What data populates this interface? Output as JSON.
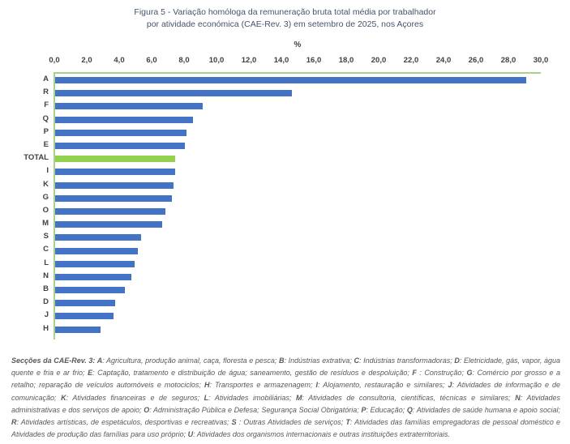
{
  "figure": {
    "title_line1": "Figura 5 - Variação homóloga da remuneração bruta total média por trabalhador",
    "title_line2": "por atividade económica (CAE-Rev. 3) em setembro de 2025, nos Açores"
  },
  "chart_data": {
    "type": "bar",
    "orientation": "horizontal",
    "title": "Figura 5 - Variação homóloga da remuneração bruta total média por trabalhador por atividade económica (CAE-Rev. 3) em setembro de 2025, nos Açores",
    "unit_label": "%",
    "categories": [
      "A",
      "R",
      "F",
      "Q",
      "P",
      "E",
      "TOTAL",
      "I",
      "K",
      "G",
      "O",
      "M",
      "S",
      "C",
      "L",
      "N",
      "B",
      "D",
      "J",
      "H"
    ],
    "values": [
      29.1,
      14.6,
      9.1,
      8.5,
      8.1,
      8.0,
      7.4,
      7.4,
      7.3,
      7.2,
      6.8,
      6.6,
      5.3,
      5.1,
      4.9,
      4.7,
      4.3,
      3.7,
      3.6,
      2.8
    ],
    "highlight_category": "TOTAL",
    "x_ticks": [
      "0,0",
      "2,0",
      "4,0",
      "6,0",
      "8,0",
      "10,0",
      "12,0",
      "14,0",
      "16,0",
      "18,0",
      "20,0",
      "22,0",
      "24,0",
      "26,0",
      "28,0",
      "30,0"
    ],
    "xlim": [
      0,
      30
    ],
    "grid": false,
    "legend": false,
    "colors": {
      "bar": "#4472C4",
      "highlight_bar": "#92D050",
      "axis_line": "#A9D18E",
      "tick_text": "#404040",
      "title_text": "#44546A",
      "footnote_text": "#595959"
    }
  },
  "footnote": {
    "intro": "Secções da CAE-Rev. 3:",
    "separator": "; ",
    "terminator": ".",
    "sections": [
      {
        "key": "A",
        "desc": "Agricultura, produção animal, caça, floresta e pesca"
      },
      {
        "key": "B",
        "desc": "Indústrias extrativa"
      },
      {
        "key": "C",
        "desc": "Indústrias transformadoras"
      },
      {
        "key": "D",
        "desc": "Eletricidade, gás, vapor, água quente e fria e ar frio"
      },
      {
        "key": "E",
        "desc": "Captação, tratamento e distribuição de água; saneamento, gestão de resíduos e despoluição"
      },
      {
        "key": "F ",
        "desc": "Construção"
      },
      {
        "key": "G",
        "desc": "Comércio por grosso e a retalho; reparação de veículos automóveis e motociclos"
      },
      {
        "key": "H",
        "desc": "Transportes e armazenagem"
      },
      {
        "key": "I",
        "desc": "Alojamento, restauração e similares"
      },
      {
        "key": "J",
        "desc": "Atividades de informação e de comunicação"
      },
      {
        "key": "K",
        "desc": "Atividades financeiras e de seguros"
      },
      {
        "key": "L",
        "desc": "Atividades imobiliárias"
      },
      {
        "key": "M",
        "desc": "Atividades de consultoria, científicas, técnicas e similares"
      },
      {
        "key": "N",
        "desc": "Atividades administrativas e dos serviços de apoio"
      },
      {
        "key": "O",
        "desc": "Administração Pública e Defesa; Segurança Social Obrigatória"
      },
      {
        "key": "P",
        "desc": "Educação"
      },
      {
        "key": "Q",
        "desc": "Atividades de saúde humana e apoio social"
      },
      {
        "key": "R",
        "desc": "Atividades artísticas, de espetáculos, desportivas e recreativas"
      },
      {
        "key": "S ",
        "desc": "Outras Atividades de serviços"
      },
      {
        "key": "T",
        "desc": "Atividades das famílias empregadoras de pessoal doméstico e Atividades de produção das famílias para uso próprio"
      },
      {
        "key": "U",
        "desc": "Atividades dos organismos internacionais e outras instituições extraterritoriais"
      }
    ]
  }
}
